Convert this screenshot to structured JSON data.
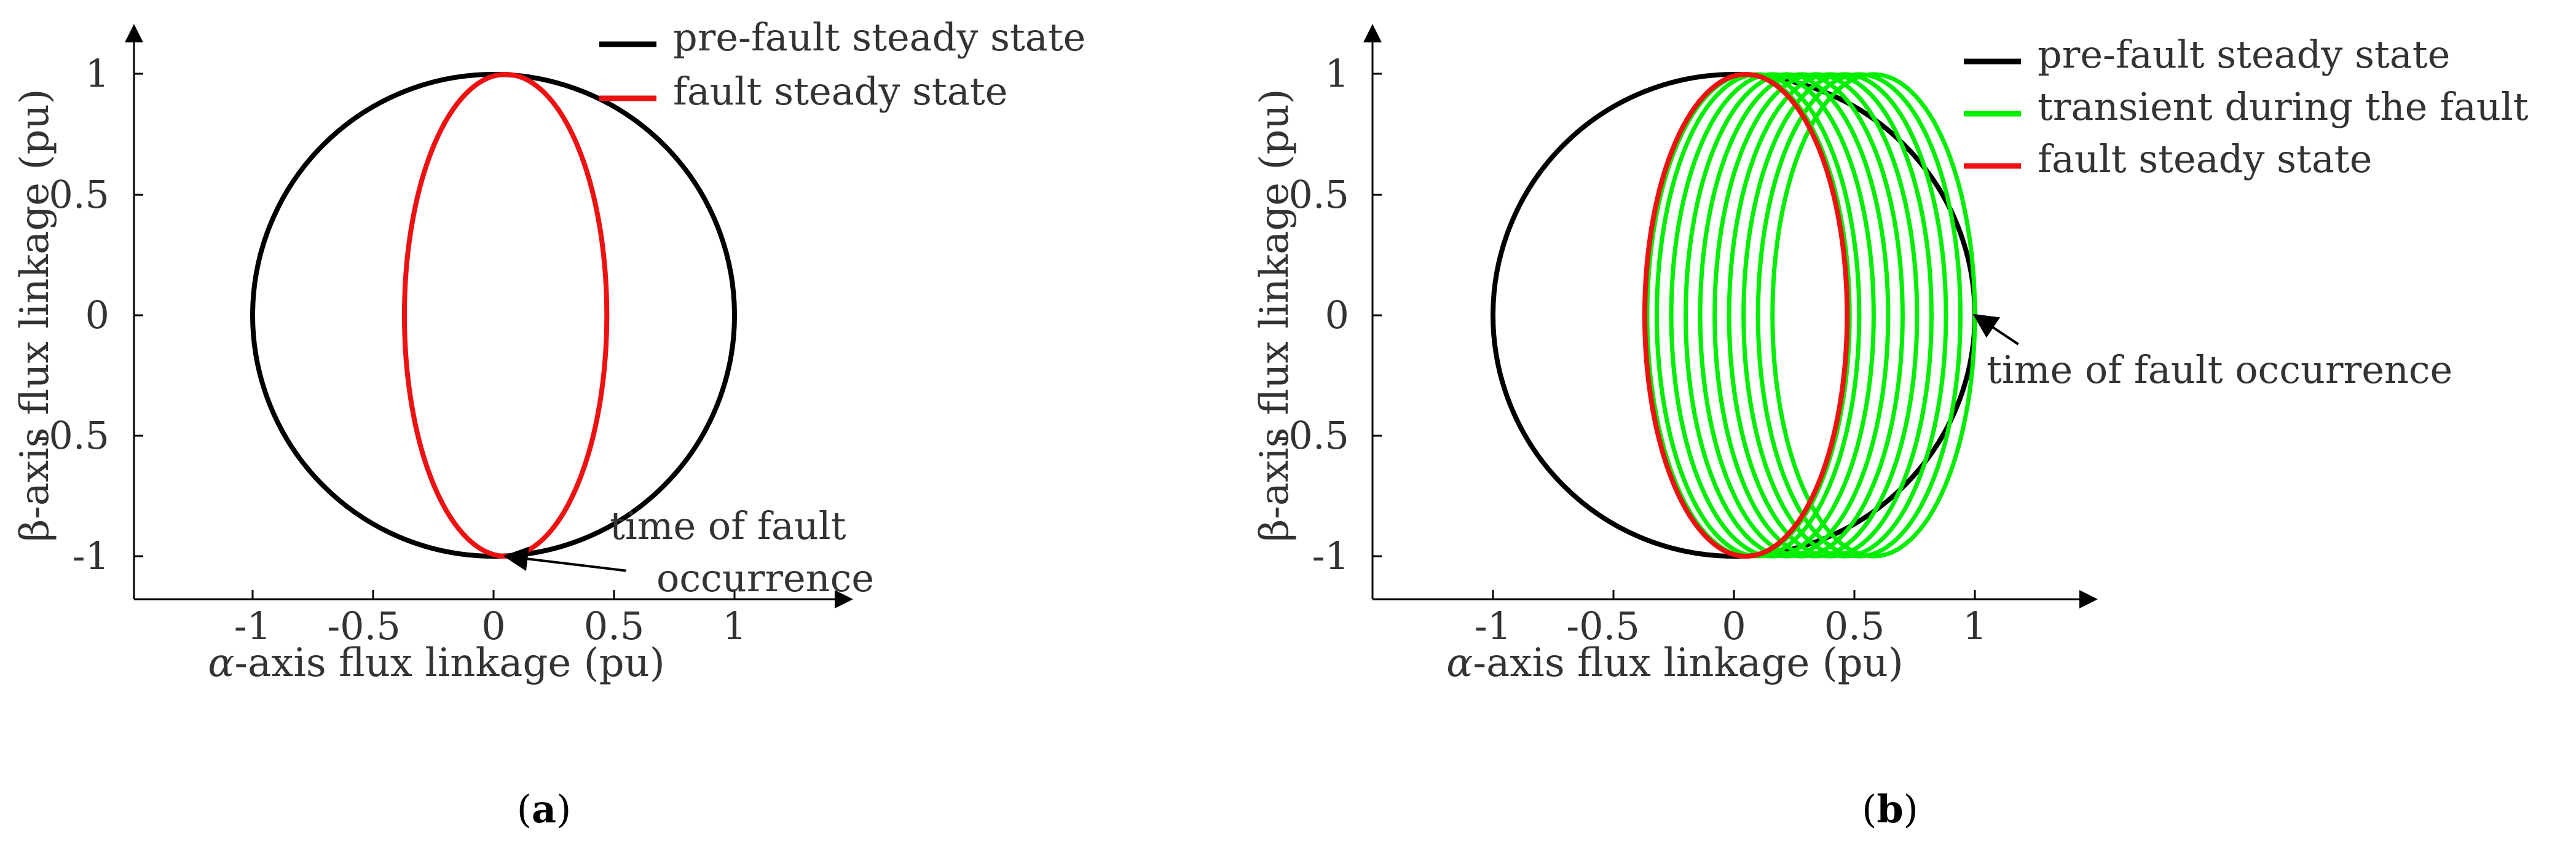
{
  "colors": {
    "pre_fault": "#000000",
    "transient": "#00ee00",
    "fault": "#ee1111",
    "axis": "#000000",
    "text": "#333333"
  },
  "chart_data": [
    {
      "type": "line",
      "panel_label": "(a)",
      "panel_letter": "a",
      "xlabel_symbol": "α",
      "xlabel_text": "-axis flux linkage (pu)",
      "ylabel": "β-axis flux linkage (pu)",
      "xlim": [
        -1.5,
        1.5
      ],
      "ylim": [
        -1.2,
        1.2
      ],
      "xticks": [
        -1,
        -0.5,
        0,
        0.5,
        1
      ],
      "xtick_labels": [
        "-1",
        "-0.5",
        "0",
        "0.5",
        "1"
      ],
      "yticks": [
        1,
        0.5,
        0,
        -0.5,
        -1
      ],
      "ytick_labels": [
        "1",
        "0.5",
        "0",
        "-0.5",
        "-1"
      ],
      "legend_placement": "top-right",
      "series": [
        {
          "name": "pre-fault steady state",
          "color": "pre_fault",
          "shape": "ellipse",
          "center": [
            0,
            0
          ],
          "radius_x": 1.0,
          "radius_y": 1.0
        },
        {
          "name": "fault steady state",
          "color": "fault",
          "shape": "ellipse",
          "center": [
            0.05,
            0
          ],
          "radius_x": 0.42,
          "radius_y": 1.0
        }
      ],
      "annotation": {
        "lines": [
          "time of fault",
          "occurrence"
        ],
        "target": [
          0.05,
          -1.0
        ],
        "arrow_from": [
          0.55,
          -1.06
        ]
      }
    },
    {
      "type": "line",
      "panel_label": "(b)",
      "panel_letter": "b",
      "xlabel_symbol": "α",
      "xlabel_text": "-axis flux linkage (pu)",
      "ylabel": "β-axis flux linkage (pu)",
      "xlim": [
        -1.5,
        1.5
      ],
      "ylim": [
        -1.2,
        1.2
      ],
      "xticks": [
        -1,
        -0.5,
        0,
        0.5,
        1
      ],
      "xtick_labels": [
        "-1",
        "-0.5",
        "0",
        "0.5",
        "1"
      ],
      "yticks": [
        1,
        0.5,
        0,
        -0.5,
        -1
      ],
      "ytick_labels": [
        "1",
        "0.5",
        "0",
        "-0.5",
        "-1"
      ],
      "legend_placement": "top-right",
      "series": [
        {
          "name": "pre-fault steady state",
          "color": "pre_fault",
          "shape": "ellipse",
          "center": [
            0,
            0
          ],
          "radius_x": 1.0,
          "radius_y": 1.0
        },
        {
          "name": "transient during the fault",
          "color": "transient",
          "shape": "ellipse_family",
          "centers_x": [
            0.58,
            0.52,
            0.46,
            0.4,
            0.34,
            0.28,
            0.22,
            0.16,
            0.1,
            0.06
          ],
          "center_y": 0,
          "radius_x": 0.42,
          "radius_y": 1.0
        },
        {
          "name": "fault steady state",
          "color": "fault",
          "shape": "ellipse",
          "center": [
            0.05,
            0
          ],
          "radius_x": 0.42,
          "radius_y": 1.0
        }
      ],
      "annotation": {
        "lines": [
          "time of fault occurrence"
        ],
        "target": [
          1.0,
          0.0
        ],
        "arrow_from": [
          1.18,
          -0.12
        ]
      }
    }
  ]
}
